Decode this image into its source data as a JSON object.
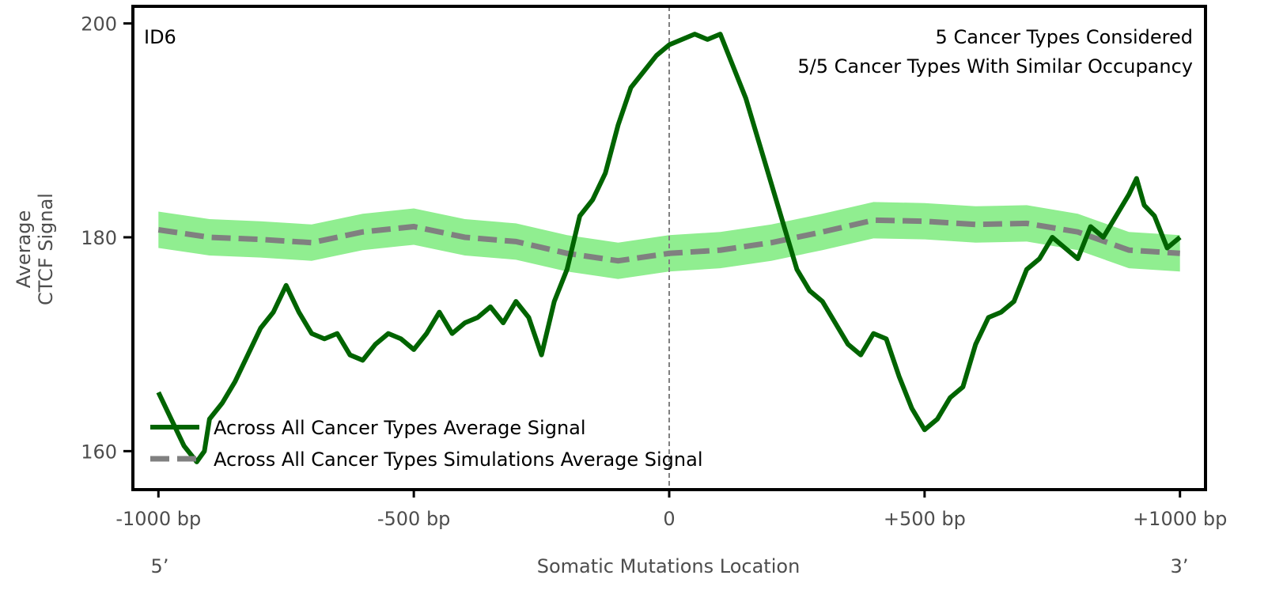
{
  "chart_data": {
    "type": "line",
    "title": "",
    "xlabel": "Somatic Mutations Location",
    "ylabel": [
      "Average",
      "CTCF Signal"
    ],
    "xlim": [
      -1050,
      1050
    ],
    "ylim": [
      156.4,
      201.6
    ],
    "xticks": [
      {
        "value": -1000,
        "label": "-1000 bp"
      },
      {
        "value": -500,
        "label": "-500 bp"
      },
      {
        "value": 0,
        "label": "0"
      },
      {
        "value": 500,
        "label": "+500 bp"
      },
      {
        "value": 1000,
        "label": "+1000 bp"
      }
    ],
    "yticks": [
      {
        "value": 160,
        "label": "160"
      },
      {
        "value": 180,
        "label": "180"
      },
      {
        "value": 200,
        "label": "200"
      }
    ],
    "end_labels": {
      "left": "5’",
      "right": "3’"
    },
    "annotations": {
      "signature": "ID6",
      "line1": "5 Cancer Types Considered",
      "line2": "5/5 Cancer Types With Similar Occupancy"
    },
    "vline": 0,
    "colors": {
      "real": "#006400",
      "sim": "#808080",
      "band": "#90ee90"
    },
    "series": [
      {
        "name": "Across All Cancer Types Average Signal",
        "x": [
          -1000,
          -975,
          -950,
          -925,
          -910,
          -900,
          -875,
          -850,
          -825,
          -800,
          -775,
          -750,
          -725,
          -700,
          -675,
          -650,
          -625,
          -600,
          -575,
          -550,
          -525,
          -500,
          -475,
          -450,
          -425,
          -400,
          -375,
          -350,
          -325,
          -300,
          -275,
          -250,
          -225,
          -200,
          -175,
          -150,
          -125,
          -100,
          -75,
          -50,
          -25,
          0,
          25,
          50,
          75,
          100,
          125,
          150,
          175,
          200,
          225,
          250,
          275,
          300,
          325,
          350,
          375,
          400,
          425,
          450,
          475,
          500,
          525,
          550,
          575,
          600,
          625,
          650,
          675,
          700,
          725,
          750,
          775,
          800,
          825,
          850,
          875,
          900,
          915,
          930,
          950,
          975,
          1000
        ],
        "y": [
          165.5,
          163,
          160.5,
          159,
          160,
          163,
          164.5,
          166.5,
          169,
          171.5,
          173,
          175.5,
          173,
          171,
          170.5,
          171,
          169,
          168.5,
          170,
          171,
          170.5,
          169.5,
          171,
          173,
          171,
          172,
          172.5,
          173.5,
          172,
          174,
          172.5,
          169,
          174,
          177,
          182,
          183.5,
          186,
          190.5,
          194,
          195.5,
          197,
          198,
          198.5,
          199,
          198.5,
          199,
          196,
          193,
          189,
          185,
          181,
          177,
          175,
          174,
          172,
          170,
          169,
          171,
          170.5,
          167,
          164,
          162,
          163,
          165,
          166,
          170,
          172.5,
          173,
          174,
          177,
          178,
          180,
          179,
          178,
          181,
          180,
          182,
          184,
          185.5,
          183,
          182,
          179,
          180
        ]
      },
      {
        "name": "Across All Cancer Types Simulations Average Signal",
        "x": [
          -1000,
          -900,
          -800,
          -700,
          -600,
          -500,
          -400,
          -300,
          -200,
          -100,
          0,
          100,
          200,
          300,
          400,
          500,
          600,
          700,
          800,
          900,
          1000
        ],
        "y": [
          180.7,
          180,
          179.8,
          179.5,
          180.5,
          181,
          180,
          179.6,
          178.5,
          177.8,
          178.5,
          178.8,
          179.5,
          180.5,
          181.6,
          181.5,
          181.2,
          181.3,
          180.5,
          178.8,
          178.5
        ],
        "band_halfwidth": 1.7
      }
    ]
  }
}
